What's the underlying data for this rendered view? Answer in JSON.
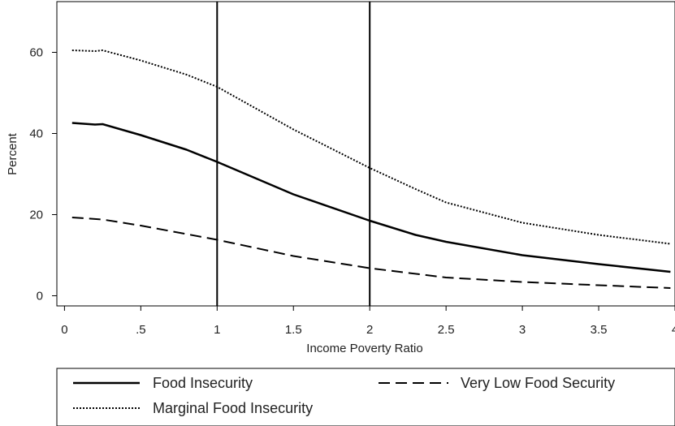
{
  "chart_data": {
    "type": "line",
    "title": "",
    "xlabel": "Income Poverty Ratio",
    "ylabel": "Percent",
    "xlim": [
      -0.05,
      4.0
    ],
    "ylim": [
      -2.5,
      72.5
    ],
    "x_ticks": [
      0,
      0.5,
      1,
      1.5,
      2,
      2.5,
      3,
      3.5,
      4
    ],
    "x_tick_labels": [
      "0",
      ".5",
      "1",
      "1.5",
      "2",
      "2.5",
      "3",
      "3.5",
      "4"
    ],
    "y_ticks": [
      0,
      20,
      40,
      60
    ],
    "y_tick_labels": [
      "0",
      "20",
      "40",
      "60"
    ],
    "reference_lines_x": [
      1,
      2
    ],
    "grid": false,
    "legend_position": "bottom",
    "series": [
      {
        "name": "Food Insecurity",
        "style": "solid",
        "x": [
          0.05,
          0.2,
          0.25,
          0.5,
          0.8,
          1.0,
          1.5,
          2.0,
          2.3,
          2.5,
          3.0,
          3.5,
          3.97
        ],
        "y": [
          42.6,
          42.2,
          42.3,
          39.6,
          36.0,
          33.0,
          25.0,
          18.5,
          15.0,
          13.3,
          10.0,
          7.8,
          5.9
        ]
      },
      {
        "name": "Very Low Food Security",
        "style": "dashed",
        "x": [
          0.05,
          0.25,
          0.5,
          0.8,
          1.0,
          1.5,
          2.0,
          2.5,
          3.0,
          3.5,
          3.97
        ],
        "y": [
          19.3,
          18.8,
          17.3,
          15.2,
          13.8,
          9.8,
          6.8,
          4.5,
          3.4,
          2.6,
          1.9
        ]
      },
      {
        "name": "Marginal Food Insecurity",
        "style": "dotted",
        "x": [
          0.05,
          0.2,
          0.25,
          0.5,
          0.8,
          1.0,
          1.5,
          2.0,
          2.3,
          2.5,
          3.0,
          3.5,
          3.97
        ],
        "y": [
          60.5,
          60.3,
          60.5,
          58.0,
          54.5,
          51.5,
          41.0,
          31.5,
          26.3,
          23.0,
          18.0,
          15.0,
          12.8
        ]
      }
    ]
  }
}
